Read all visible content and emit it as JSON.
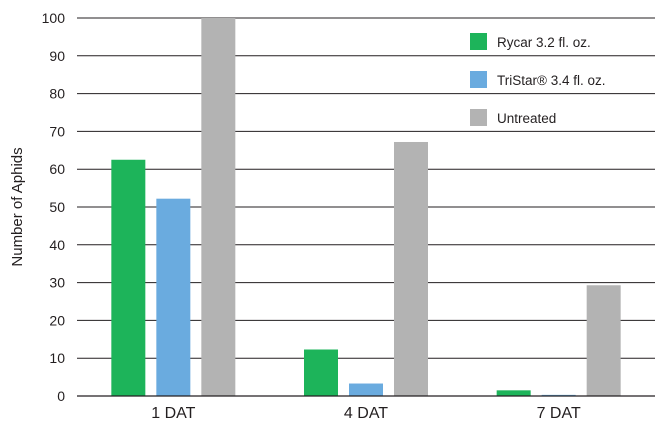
{
  "chart_data": {
    "type": "bar",
    "categories": [
      "1 DAT",
      "4 DAT",
      "7 DAT"
    ],
    "series": [
      {
        "name": "Rycar 3.2 fl. oz.",
        "values": [
          62.5,
          12.3,
          1.5
        ],
        "color": "#1db45a"
      },
      {
        "name": "TriStar® 3.4 fl. oz.",
        "values": [
          52.2,
          3.3,
          0.3
        ],
        "color": "#6aabdf"
      },
      {
        "name": "Untreated",
        "values": [
          100,
          67.2,
          29.3
        ],
        "color": "#b3b3b3"
      }
    ],
    "title": "",
    "xlabel": "",
    "ylabel": "Number of Aphids",
    "ylim": [
      0,
      100
    ],
    "yticks": [
      0,
      10,
      20,
      30,
      40,
      50,
      60,
      70,
      80,
      90,
      100
    ],
    "grid": true,
    "legend_position": "top-right"
  }
}
